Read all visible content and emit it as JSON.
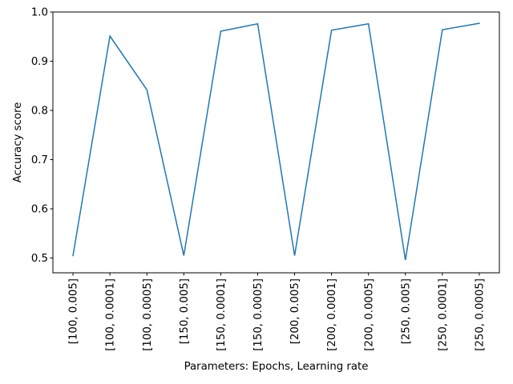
{
  "chart_data": {
    "type": "line",
    "title": "",
    "xlabel": "Parameters: Epochs, Learning rate",
    "ylabel": "Accuracy score",
    "categories": [
      "[100, 0.005]",
      "[100, 0.0001]",
      "[100, 0.0005]",
      "[150, 0.005]",
      "[150, 0.0001]",
      "[150, 0.0005]",
      "[200, 0.005]",
      "[200, 0.0001]",
      "[200, 0.0005]",
      "[250, 0.005]",
      "[250, 0.0001]",
      "[250, 0.0005]"
    ],
    "series": [
      {
        "values": [
          0.505,
          0.951,
          0.842,
          0.505,
          0.961,
          0.976,
          0.505,
          0.963,
          0.976,
          0.496,
          0.964,
          0.977
        ]
      }
    ],
    "ylim": [
      0.47,
      1.0
    ],
    "yticks": [
      0.5,
      0.6,
      0.7,
      0.8,
      0.9,
      1.0
    ],
    "ytick_labels": [
      "0.5",
      "0.6",
      "0.7",
      "0.8",
      "0.9",
      "1.0"
    ],
    "grid": false,
    "legend": "none",
    "colors": {
      "line": "#1f77b4",
      "axes": "#000000",
      "background": "#ffffff"
    }
  }
}
